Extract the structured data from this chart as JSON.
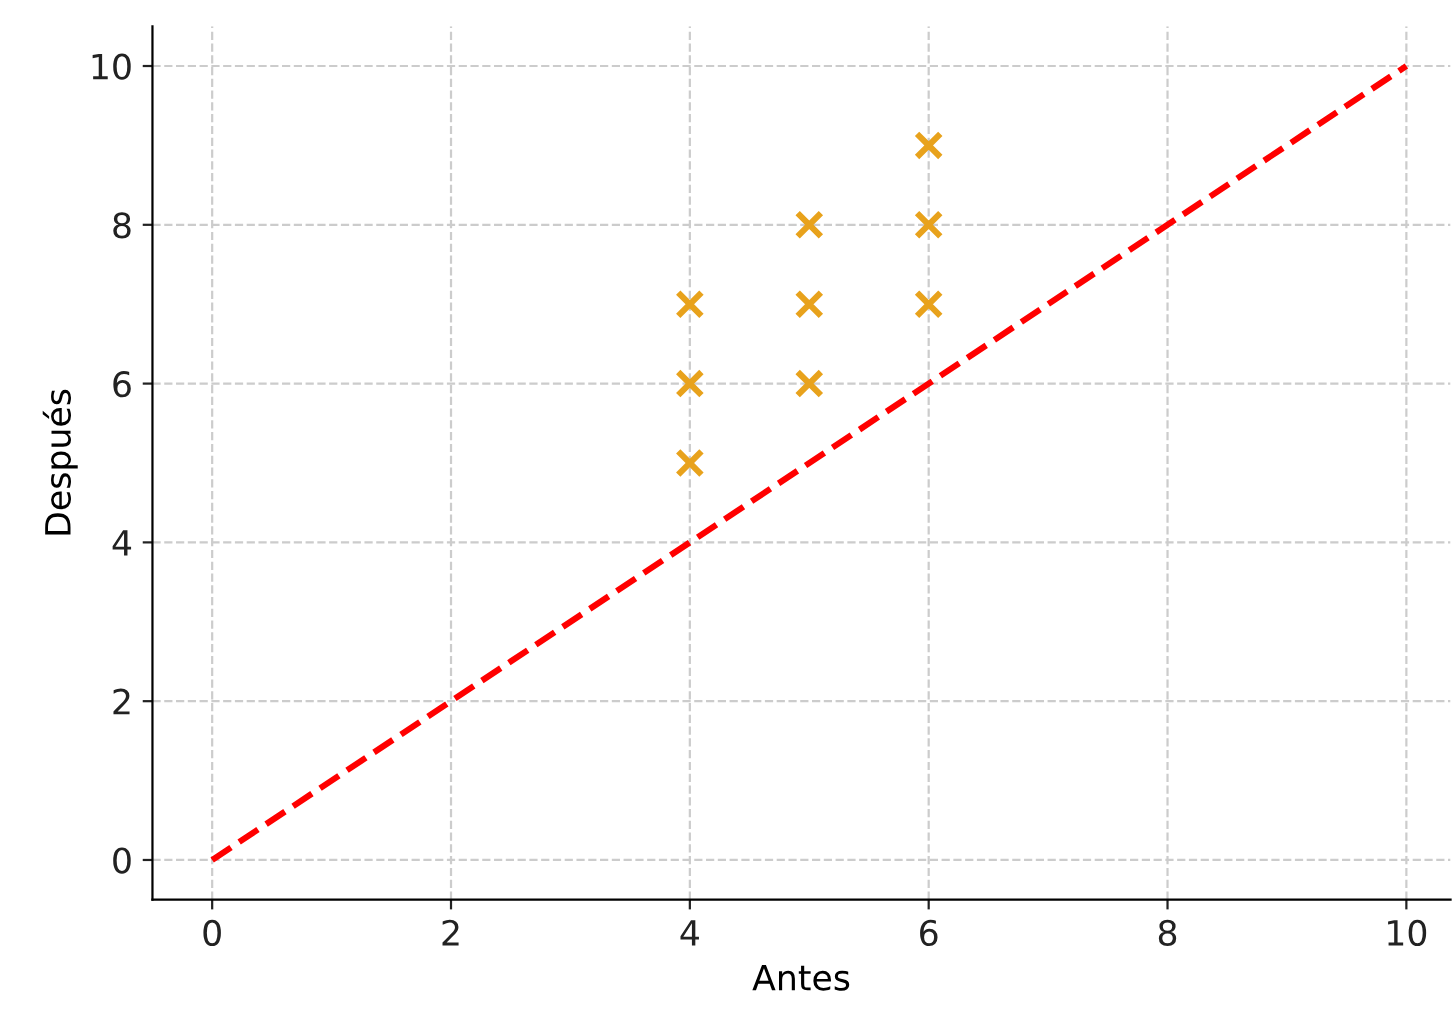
{
  "chart_data": {
    "type": "scatter",
    "xlabel": "Antes",
    "ylabel": "Después",
    "series": [
      {
        "color": "#e8a21c",
        "marker": "cross",
        "x": [
          4,
          4,
          4,
          5,
          5,
          5,
          6,
          6,
          6
        ],
        "values": [
          5,
          6,
          7,
          6,
          7,
          8,
          7,
          8,
          9
        ]
      },
      {
        "type": "line",
        "color": "#ff0000",
        "marker": "none",
        "line_style": "dashed",
        "x": [
          0,
          10
        ],
        "values": [
          0,
          10
        ]
      }
    ],
    "xlim": [
      -0.5,
      10.37
    ],
    "ylim": [
      -0.5,
      10.5
    ],
    "xticks": [
      0,
      2,
      4,
      6,
      8,
      10
    ],
    "yticks": [
      0,
      2,
      4,
      6,
      8,
      10
    ],
    "grid": true
  }
}
